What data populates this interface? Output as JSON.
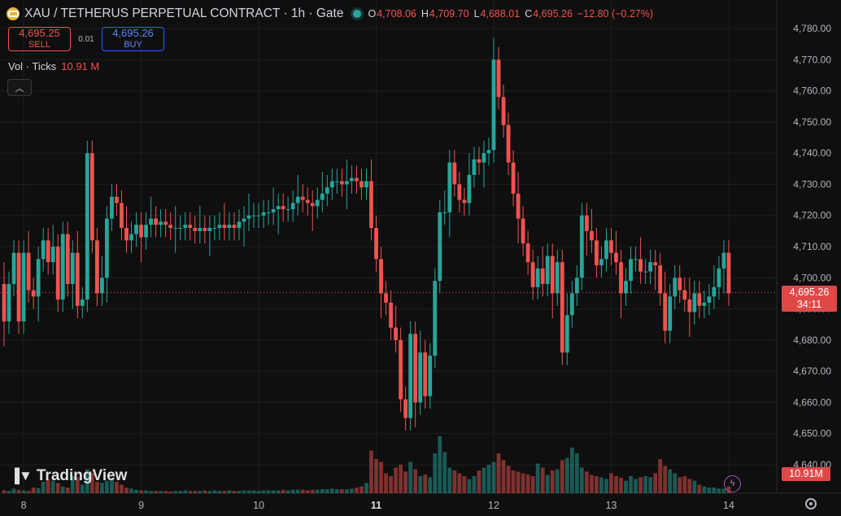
{
  "header": {
    "symbol_title": "XAU / TETHERUS PERPETUAL CONTRACT · 1h · Gate",
    "open_label": "O",
    "open": "4,708.06",
    "high_label": "H",
    "high": "4,709.70",
    "low_label": "L",
    "low": "4,688.01",
    "close_label": "C",
    "close": "4,695.26",
    "change": "−12.80 (−0.27%)"
  },
  "trade": {
    "sell_price": "4,695.25",
    "sell_label": "SELL",
    "spread": "0.01",
    "buy_price": "4,695.26",
    "buy_label": "BUY"
  },
  "volume_legend": {
    "label": "Vol · Ticks",
    "value": "10.91 M"
  },
  "logo_text": "TradingView",
  "last_price": "4,695.26",
  "countdown": "34:11",
  "last_volume": "10.91M",
  "colors": {
    "up": "#26a69a",
    "down": "#ef5350",
    "background": "#0f0f0f",
    "grid": "#1e1e1e"
  },
  "icons": [
    "gate-coin-icon",
    "live-status-icon",
    "collapse-chevron-icon",
    "tradingview-logo-icon",
    "lightning-icon",
    "settings-gear-icon"
  ],
  "chart_data": {
    "type": "candlestick",
    "interval": "1h",
    "y_ticks": [
      "4,640.00",
      "4,650.00",
      "4,660.00",
      "4,670.00",
      "4,680.00",
      "4,690.00",
      "4,700.00",
      "4,710.00",
      "4,720.00",
      "4,730.00",
      "4,740.00",
      "4,750.00",
      "4,760.00",
      "4,770.00",
      "4,780.00"
    ],
    "ylim": [
      4636,
      4784
    ],
    "x_ticks": [
      {
        "label": "8",
        "index": 4,
        "bold": false
      },
      {
        "label": "9",
        "index": 28,
        "bold": false
      },
      {
        "label": "10",
        "index": 52,
        "bold": false
      },
      {
        "label": "11",
        "index": 76,
        "bold": true
      },
      {
        "label": "12",
        "index": 100,
        "bold": false
      },
      {
        "label": "13",
        "index": 124,
        "bold": false
      },
      {
        "label": "14",
        "index": 148,
        "bold": false
      }
    ],
    "last_price_value": 4695.26,
    "close": [
      4686,
      4698,
      4708,
      4686,
      4708,
      4696,
      4694,
      4706,
      4712,
      4705,
      4710,
      4693,
      4714,
      4698,
      4708,
      4691,
      4693,
      4740,
      4712,
      4695,
      4700,
      4719,
      4726,
      4724,
      4716,
      4712,
      4714,
      4717,
      4713,
      4717,
      4719,
      4717,
      4718,
      4717,
      4716,
      4716,
      4716,
      4717,
      4716,
      4715,
      4716,
      4715,
      4716,
      4716,
      4717,
      4716,
      4717,
      4716,
      4718,
      4719,
      4720,
      4720,
      4720,
      4721,
      4721,
      4722,
      4723,
      4722,
      4722,
      4724,
      4726,
      4725,
      4724,
      4723,
      4725,
      4727,
      4729,
      4731,
      4731,
      4730,
      4731,
      4732,
      4731,
      4729,
      4731,
      4716,
      4706,
      4695,
      4692,
      4684,
      4680,
      4661,
      4655,
      4682,
      4660,
      4676,
      4662,
      4675,
      4699,
      4721,
      4721,
      4737,
      4730,
      4725,
      4724,
      4733,
      4738,
      4737,
      4740,
      4741,
      4770,
      4758,
      4749,
      4737,
      4727,
      4719,
      4711,
      4705,
      4697,
      4703,
      4698,
      4707,
      4695,
      4705,
      4676,
      4688,
      4695,
      4700,
      4720,
      4715,
      4712,
      4704,
      4706,
      4712,
      4708,
      4705,
      4695,
      4699,
      4706,
      4706,
      4702,
      4702,
      4705,
      4704,
      4695,
      4683,
      4694,
      4700,
      4696,
      4693,
      4689,
      4695,
      4691,
      4692,
      4694,
      4697,
      4703,
      4708,
      4695
    ],
    "open": [
      4698,
      4686,
      4698,
      4708,
      4686,
      4708,
      4696,
      4694,
      4706,
      4712,
      4705,
      4710,
      4693,
      4714,
      4698,
      4708,
      4691,
      4693,
      4740,
      4712,
      4695,
      4700,
      4719,
      4726,
      4724,
      4716,
      4712,
      4714,
      4717,
      4713,
      4717,
      4719,
      4717,
      4718,
      4717,
      4716,
      4716,
      4716,
      4717,
      4716,
      4715,
      4716,
      4715,
      4716,
      4716,
      4717,
      4716,
      4717,
      4716,
      4718,
      4719,
      4720,
      4720,
      4720,
      4721,
      4721,
      4722,
      4723,
      4722,
      4722,
      4724,
      4726,
      4725,
      4724,
      4723,
      4725,
      4727,
      4729,
      4731,
      4731,
      4730,
      4731,
      4732,
      4731,
      4729,
      4731,
      4716,
      4706,
      4695,
      4692,
      4684,
      4680,
      4661,
      4655,
      4682,
      4660,
      4676,
      4662,
      4675,
      4699,
      4721,
      4721,
      4737,
      4730,
      4725,
      4724,
      4733,
      4738,
      4737,
      4740,
      4741,
      4770,
      4758,
      4749,
      4737,
      4727,
      4719,
      4711,
      4705,
      4697,
      4703,
      4698,
      4707,
      4695,
      4705,
      4676,
      4688,
      4695,
      4700,
      4720,
      4715,
      4712,
      4704,
      4706,
      4712,
      4708,
      4705,
      4695,
      4699,
      4706,
      4706,
      4702,
      4702,
      4705,
      4704,
      4695,
      4683,
      4694,
      4700,
      4696,
      4693,
      4689,
      4695,
      4691,
      4692,
      4694,
      4697,
      4703,
      4708.06
    ],
    "volume_note": "volume histogram per candle, in relative units 0-1",
    "volume": [
      0.05,
      0.04,
      0.08,
      0.06,
      0.05,
      0.04,
      0.1,
      0.09,
      0.2,
      0.25,
      0.22,
      0.18,
      0.12,
      0.1,
      0.3,
      0.28,
      0.15,
      0.42,
      0.35,
      0.2,
      0.18,
      0.22,
      0.25,
      0.2,
      0.15,
      0.1,
      0.08,
      0.06,
      0.05,
      0.05,
      0.04,
      0.04,
      0.04,
      0.04,
      0.03,
      0.04,
      0.04,
      0.05,
      0.04,
      0.04,
      0.04,
      0.05,
      0.04,
      0.05,
      0.04,
      0.04,
      0.05,
      0.04,
      0.04,
      0.05,
      0.05,
      0.05,
      0.04,
      0.05,
      0.05,
      0.05,
      0.05,
      0.06,
      0.05,
      0.06,
      0.06,
      0.06,
      0.05,
      0.06,
      0.06,
      0.07,
      0.07,
      0.08,
      0.07,
      0.07,
      0.07,
      0.08,
      0.1,
      0.12,
      0.18,
      0.75,
      0.6,
      0.55,
      0.35,
      0.3,
      0.45,
      0.5,
      0.38,
      0.55,
      0.42,
      0.3,
      0.33,
      0.28,
      0.7,
      1.0,
      0.72,
      0.45,
      0.4,
      0.35,
      0.3,
      0.25,
      0.3,
      0.4,
      0.45,
      0.5,
      0.55,
      0.7,
      0.58,
      0.48,
      0.4,
      0.38,
      0.35,
      0.33,
      0.3,
      0.52,
      0.45,
      0.32,
      0.4,
      0.42,
      0.58,
      0.62,
      0.8,
      0.7,
      0.45,
      0.38,
      0.32,
      0.3,
      0.28,
      0.25,
      0.35,
      0.3,
      0.27,
      0.22,
      0.3,
      0.25,
      0.28,
      0.3,
      0.28,
      0.35,
      0.6,
      0.48,
      0.42,
      0.35,
      0.28,
      0.3,
      0.25,
      0.22,
      0.15,
      0.12,
      0.1,
      0.1,
      0.08,
      0.08,
      0.12
    ]
  }
}
